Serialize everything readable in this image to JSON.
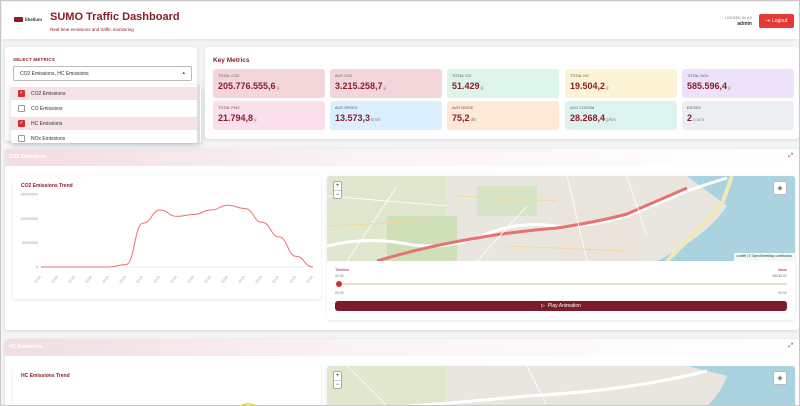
{
  "header": {
    "logo_text": "libelium",
    "title": "SUMO Traffic Dashboard",
    "subtitle": "Real-time emissions and traffic monitoring",
    "logged_in_label": "LOGGED IN AS",
    "username": "admin",
    "logout_label": "Logout"
  },
  "select": {
    "label": "SELECT METRICS",
    "value": "CO2 Emissions, HC Emissions",
    "options": [
      {
        "label": "CO2 Emissions",
        "checked": true
      },
      {
        "label": "CO Emissions",
        "checked": false
      },
      {
        "label": "HC Emissions",
        "checked": true
      },
      {
        "label": "NOx Emissions",
        "checked": false
      }
    ]
  },
  "metrics": {
    "title": "Key Metrics",
    "cards": [
      {
        "label": "TOTAL CO2",
        "value": "205.776.555,6",
        "unit": "g",
        "bg": "#f3d6d9"
      },
      {
        "label": "AVG CO2",
        "value": "3.215.258,7",
        "unit": "g",
        "bg": "#f3d6d9"
      },
      {
        "label": "TOTAL CO",
        "value": "51.429",
        "unit": "g",
        "bg": "#dcf5e8"
      },
      {
        "label": "TOTAL HC",
        "value": "19.504,2",
        "unit": "g",
        "bg": "#fdf4d6"
      },
      {
        "label": "TOTAL NOX",
        "value": "585.596,4",
        "unit": "g",
        "bg": "#ece3fa"
      },
      {
        "label": "TOTAL PMX",
        "value": "21.794,8",
        "unit": "g",
        "bg": "#fbe0ec"
      },
      {
        "label": "AVG SPEED",
        "value": "13.573,3",
        "unit": "km/h",
        "bg": "#dcefff"
      },
      {
        "label": "AVG NOISE",
        "value": "75,2",
        "unit": "dB",
        "bg": "#fde9d6"
      },
      {
        "label": "AVG CO2/KM",
        "value": "28.268,4",
        "unit": "g/km",
        "bg": "#dcf3ee"
      },
      {
        "label": "EDGES",
        "value": "2",
        "unit": "count",
        "bg": "#eceff2"
      }
    ]
  },
  "sections": [
    {
      "heading": "CO2 Emissions",
      "chart_title": "CO2 Emissions Trend",
      "timeline_label": "Timeline",
      "timeline_value": "00:00",
      "value_label": "Value",
      "value": "98036.57",
      "time_start": "00:00",
      "time_end": "00:00",
      "play_label": "Play Animation",
      "attribution": "Leaflet | © OpenStreetMap contributors"
    },
    {
      "heading": "HC Emissions",
      "chart_title": "HC Emissions Trend"
    }
  ],
  "chart_data": [
    {
      "type": "line",
      "title": "CO2 Emissions Trend",
      "y_ticks": [
        "150000000",
        "100000000",
        "50000000",
        "0"
      ],
      "ylim": [
        0,
        150000000
      ],
      "x": [
        0,
        1,
        2,
        3,
        4,
        5,
        6,
        7,
        8,
        9,
        10,
        11,
        12,
        13,
        14,
        15,
        16
      ],
      "x_tick_labels": [
        "00:00",
        "00:00",
        "00:00",
        "00:00",
        "00:00",
        "00:00",
        "00:00",
        "00:00",
        "00:00",
        "00:00",
        "00:00",
        "00:00",
        "00:00",
        "00:00",
        "00:00",
        "00:00",
        "00:00"
      ],
      "series": [
        {
          "values": [
            0,
            0,
            0,
            0,
            0,
            5000000,
            90000000,
            117000000,
            104000000,
            108000000,
            117000000,
            127000000,
            120000000,
            92000000,
            62000000,
            22000000,
            0
          ],
          "color": "#e57373"
        }
      ],
      "grid": false
    },
    {
      "type": "line",
      "title": "HC Emissions Trend",
      "series": [
        {
          "values": [],
          "color": "#f0c000"
        }
      ]
    }
  ],
  "icons": {
    "logout": "logout-icon",
    "caret": "chevron-down-icon",
    "expand": "expand-icon",
    "layers": "layers-icon",
    "play": "play-icon"
  }
}
